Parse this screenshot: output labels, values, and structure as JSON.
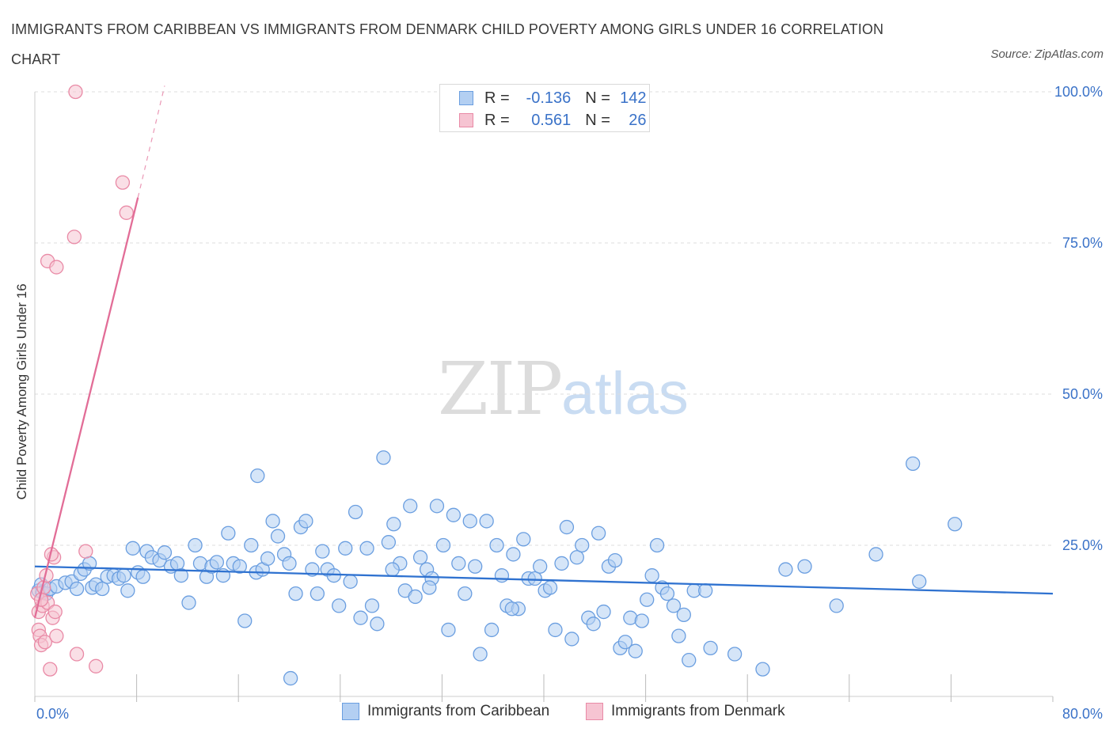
{
  "title": "IMMIGRANTS FROM CARIBBEAN VS IMMIGRANTS FROM DENMARK CHILD POVERTY AMONG GIRLS UNDER 16 CORRELATION CHART",
  "source": "Source: ZipAtlas.com",
  "watermark": {
    "zip": "ZIP",
    "atlas": "atlas"
  },
  "colors": {
    "blue_fill": "#b3cff2",
    "blue_stroke": "#6a9ee0",
    "blue_line": "#2f72d0",
    "pink_fill": "#f6c4d2",
    "pink_stroke": "#e98aa6",
    "pink_line": "#e26d97",
    "axis_text": "#3a72c8",
    "grid": "#dddddd"
  },
  "legend": {
    "r1": {
      "r_label": "R =",
      "r_value": "-0.136",
      "n_label": "N =",
      "n_value": "142"
    },
    "r2": {
      "r_label": "R =",
      "r_value": "0.561",
      "n_label": "N =",
      "n_value": "26"
    }
  },
  "chart_data": {
    "type": "scatter",
    "title": "IMMIGRANTS FROM CARIBBEAN VS IMMIGRANTS FROM DENMARK CHILD POVERTY AMONG GIRLS UNDER 16 CORRELATION CHART",
    "xlabel": "",
    "ylabel": "Child Poverty Among Girls Under 16",
    "xlim": [
      0,
      80
    ],
    "ylim": [
      0,
      100
    ],
    "x_tick_labels": [
      "0.0%",
      "80.0%"
    ],
    "y_ticks": [
      25,
      50,
      75,
      100
    ],
    "y_tick_labels": [
      "25.0%",
      "50.0%",
      "75.0%",
      "100.0%"
    ],
    "grid": true,
    "legend_position": "top-center",
    "series": [
      {
        "name": "Immigrants from Caribbean",
        "R": -0.136,
        "N": 142,
        "trend": {
          "x": [
            0,
            80
          ],
          "y": [
            21.5,
            17.0
          ],
          "dashed_to": null
        },
        "points": [
          [
            0.3,
            17.5
          ],
          [
            0.5,
            18.5
          ],
          [
            0.6,
            17.2
          ],
          [
            0.9,
            17.0
          ],
          [
            1.2,
            17.8
          ],
          [
            1.7,
            18.2
          ],
          [
            2.4,
            18.8
          ],
          [
            2.9,
            19.0
          ],
          [
            3.3,
            17.8
          ],
          [
            3.6,
            20.3
          ],
          [
            3.9,
            21.0
          ],
          [
            4.5,
            18.0
          ],
          [
            4.3,
            22.0
          ],
          [
            4.8,
            18.5
          ],
          [
            5.3,
            17.8
          ],
          [
            5.7,
            19.8
          ],
          [
            6.2,
            20.0
          ],
          [
            6.6,
            19.5
          ],
          [
            7.0,
            20.0
          ],
          [
            7.3,
            17.5
          ],
          [
            7.7,
            24.5
          ],
          [
            8.1,
            20.5
          ],
          [
            8.5,
            19.8
          ],
          [
            8.8,
            24.0
          ],
          [
            9.2,
            23.0
          ],
          [
            9.8,
            22.5
          ],
          [
            10.2,
            23.8
          ],
          [
            10.7,
            21.5
          ],
          [
            11.2,
            22.0
          ],
          [
            11.5,
            20.0
          ],
          [
            12.1,
            15.5
          ],
          [
            12.6,
            25.0
          ],
          [
            13.0,
            22.0
          ],
          [
            13.5,
            19.8
          ],
          [
            13.9,
            21.5
          ],
          [
            14.3,
            22.2
          ],
          [
            14.8,
            20.0
          ],
          [
            15.2,
            27.0
          ],
          [
            15.6,
            22.0
          ],
          [
            16.1,
            21.5
          ],
          [
            16.5,
            12.5
          ],
          [
            17.0,
            25.0
          ],
          [
            17.4,
            20.5
          ],
          [
            17.9,
            21.0
          ],
          [
            18.3,
            22.8
          ],
          [
            18.7,
            29.0
          ],
          [
            19.1,
            26.5
          ],
          [
            19.6,
            23.5
          ],
          [
            20.0,
            22.0
          ],
          [
            20.5,
            17.0
          ],
          [
            20.9,
            28.0
          ],
          [
            21.3,
            29.0
          ],
          [
            21.8,
            21.0
          ],
          [
            22.2,
            17.0
          ],
          [
            22.6,
            24.0
          ],
          [
            23.0,
            21.0
          ],
          [
            23.5,
            20.0
          ],
          [
            23.9,
            15.0
          ],
          [
            24.4,
            24.5
          ],
          [
            24.8,
            19.0
          ],
          [
            25.2,
            30.5
          ],
          [
            25.6,
            13.0
          ],
          [
            26.1,
            24.5
          ],
          [
            26.5,
            15.0
          ],
          [
            26.9,
            12.0
          ],
          [
            27.4,
            39.5
          ],
          [
            27.8,
            25.5
          ],
          [
            28.2,
            28.5
          ],
          [
            28.7,
            22.0
          ],
          [
            29.1,
            17.5
          ],
          [
            29.5,
            31.5
          ],
          [
            29.9,
            16.5
          ],
          [
            30.3,
            23.0
          ],
          [
            30.8,
            21.0
          ],
          [
            31.2,
            19.5
          ],
          [
            31.6,
            31.5
          ],
          [
            32.1,
            25.0
          ],
          [
            32.5,
            11.0
          ],
          [
            32.9,
            30.0
          ],
          [
            33.3,
            22.0
          ],
          [
            33.8,
            17.0
          ],
          [
            34.2,
            29.0
          ],
          [
            34.6,
            21.5
          ],
          [
            35.0,
            7.0
          ],
          [
            35.5,
            29.0
          ],
          [
            35.9,
            11.0
          ],
          [
            36.3,
            25.0
          ],
          [
            36.7,
            20.0
          ],
          [
            37.1,
            15.0
          ],
          [
            37.6,
            23.5
          ],
          [
            38.0,
            14.5
          ],
          [
            38.4,
            26.0
          ],
          [
            38.8,
            19.5
          ],
          [
            39.3,
            19.5
          ],
          [
            39.7,
            21.5
          ],
          [
            40.1,
            17.5
          ],
          [
            40.5,
            18.0
          ],
          [
            40.9,
            11.0
          ],
          [
            41.4,
            22.0
          ],
          [
            41.8,
            28.0
          ],
          [
            42.2,
            9.5
          ],
          [
            42.6,
            23.0
          ],
          [
            43.0,
            25.0
          ],
          [
            43.5,
            13.0
          ],
          [
            43.9,
            12.0
          ],
          [
            44.3,
            27.0
          ],
          [
            44.7,
            14.0
          ],
          [
            45.1,
            21.5
          ],
          [
            45.6,
            22.5
          ],
          [
            46.0,
            8.0
          ],
          [
            46.4,
            9.0
          ],
          [
            46.8,
            13.0
          ],
          [
            47.2,
            7.5
          ],
          [
            47.7,
            12.5
          ],
          [
            48.1,
            16.0
          ],
          [
            48.5,
            20.0
          ],
          [
            48.9,
            25.0
          ],
          [
            49.3,
            18.0
          ],
          [
            49.7,
            17.0
          ],
          [
            50.2,
            15.0
          ],
          [
            50.6,
            10.0
          ],
          [
            51.0,
            13.5
          ],
          [
            51.4,
            6.0
          ],
          [
            51.8,
            17.5
          ],
          [
            52.7,
            17.5
          ],
          [
            53.1,
            8.0
          ],
          [
            55.0,
            7.0
          ],
          [
            57.2,
            4.5
          ],
          [
            59.0,
            21.0
          ],
          [
            60.5,
            21.5
          ],
          [
            63.0,
            15.0
          ],
          [
            66.1,
            23.5
          ],
          [
            69.0,
            38.5
          ],
          [
            69.5,
            19.0
          ],
          [
            72.3,
            28.5
          ],
          [
            17.5,
            36.5
          ],
          [
            20.1,
            3.0
          ],
          [
            28.1,
            21.0
          ],
          [
            37.5,
            14.5
          ],
          [
            31.0,
            18.0
          ]
        ]
      },
      {
        "name": "Immigrants from Denmark",
        "R": 0.561,
        "N": 26,
        "trend": {
          "x": [
            0,
            8.1
          ],
          "y": [
            13.0,
            82.5
          ],
          "dashed_to": [
            10.2,
            101.0
          ]
        },
        "points": [
          [
            0.2,
            17.0
          ],
          [
            0.3,
            14.0
          ],
          [
            0.3,
            11.0
          ],
          [
            0.4,
            10.0
          ],
          [
            0.5,
            8.5
          ],
          [
            0.6,
            15.0
          ],
          [
            0.7,
            18.0
          ],
          [
            0.8,
            9.0
          ],
          [
            0.9,
            20.0
          ],
          [
            1.0,
            15.5
          ],
          [
            1.2,
            4.5
          ],
          [
            1.4,
            13.0
          ],
          [
            1.5,
            23.0
          ],
          [
            1.6,
            14.0
          ],
          [
            1.7,
            10.0
          ],
          [
            1.0,
            72.0
          ],
          [
            1.7,
            71.0
          ],
          [
            3.2,
            100.0
          ],
          [
            3.1,
            76.0
          ],
          [
            3.3,
            7.0
          ],
          [
            4.0,
            24.0
          ],
          [
            4.8,
            5.0
          ],
          [
            6.9,
            85.0
          ],
          [
            7.2,
            80.0
          ],
          [
            1.3,
            23.5
          ],
          [
            0.5,
            16.0
          ]
        ]
      }
    ]
  },
  "axes": {
    "x_min_label": "0.0%",
    "x_max_label": "80.0%"
  },
  "bottom_legend": {
    "s1": "Immigrants from Caribbean",
    "s2": "Immigrants from Denmark"
  }
}
